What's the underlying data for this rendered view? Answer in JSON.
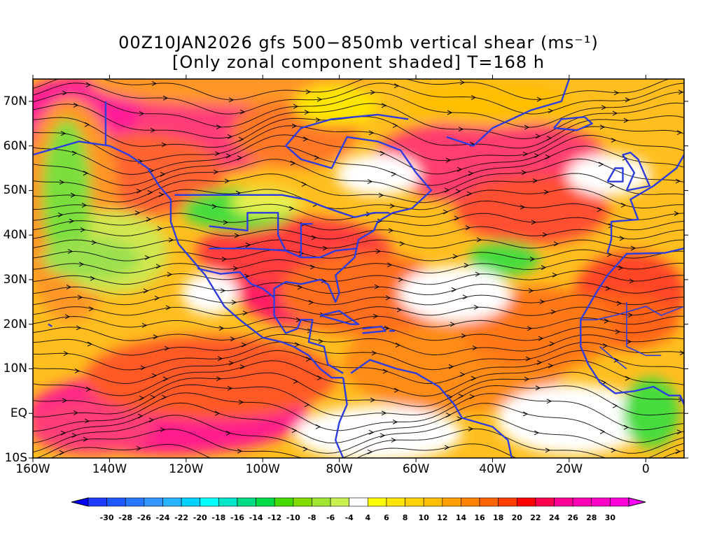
{
  "title": {
    "line1": "00Z10JAN2026 gfs 500−850mb vertical shear (ms⁻¹)",
    "line2": "[Only zonal component shaded] T=168 h"
  },
  "axes": {
    "lat_labels": [
      "70N",
      "60N",
      "50N",
      "40N",
      "30N",
      "20N",
      "10N",
      "EQ",
      "10S"
    ],
    "lat_values": [
      70,
      60,
      50,
      40,
      30,
      20,
      10,
      0,
      -10
    ],
    "lon_labels": [
      "160W",
      "140W",
      "120W",
      "100W",
      "80W",
      "60W",
      "40W",
      "20W",
      "0"
    ],
    "lon_values": [
      -160,
      -140,
      -120,
      -100,
      -80,
      -60,
      -40,
      -20,
      0
    ],
    "lon_range": [
      -160,
      10
    ],
    "lat_range": [
      -10,
      75
    ]
  },
  "colorbar": {
    "labels": [
      "-30",
      "-28",
      "-26",
      "-24",
      "-22",
      "-20",
      "-18",
      "-16",
      "-14",
      "-12",
      "-10",
      "-8",
      "-6",
      "-4",
      "4",
      "6",
      "8",
      "10",
      "12",
      "14",
      "16",
      "18",
      "20",
      "22",
      "24",
      "26",
      "28",
      "30"
    ],
    "colors": [
      "#1e3cff",
      "#1e5aff",
      "#2878ff",
      "#3296ff",
      "#28b4ff",
      "#00d2ff",
      "#00ffff",
      "#00e6c8",
      "#00dc82",
      "#00dc46",
      "#46dc00",
      "#82dc00",
      "#a0e632",
      "#c8f050",
      "#ffffff",
      "#ffff00",
      "#ffe600",
      "#ffd200",
      "#ffbe00",
      "#ffa000",
      "#ff8200",
      "#ff6400",
      "#ff3c00",
      "#ff0000",
      "#ff0050",
      "#ff0096",
      "#ff00b4",
      "#ff00c8",
      "#ff00dc"
    ],
    "below_color": "#0000ff",
    "above_color": "#ff00ff"
  },
  "colors": {
    "coastline": "#2d3cdc",
    "streamline": "#000000"
  }
}
